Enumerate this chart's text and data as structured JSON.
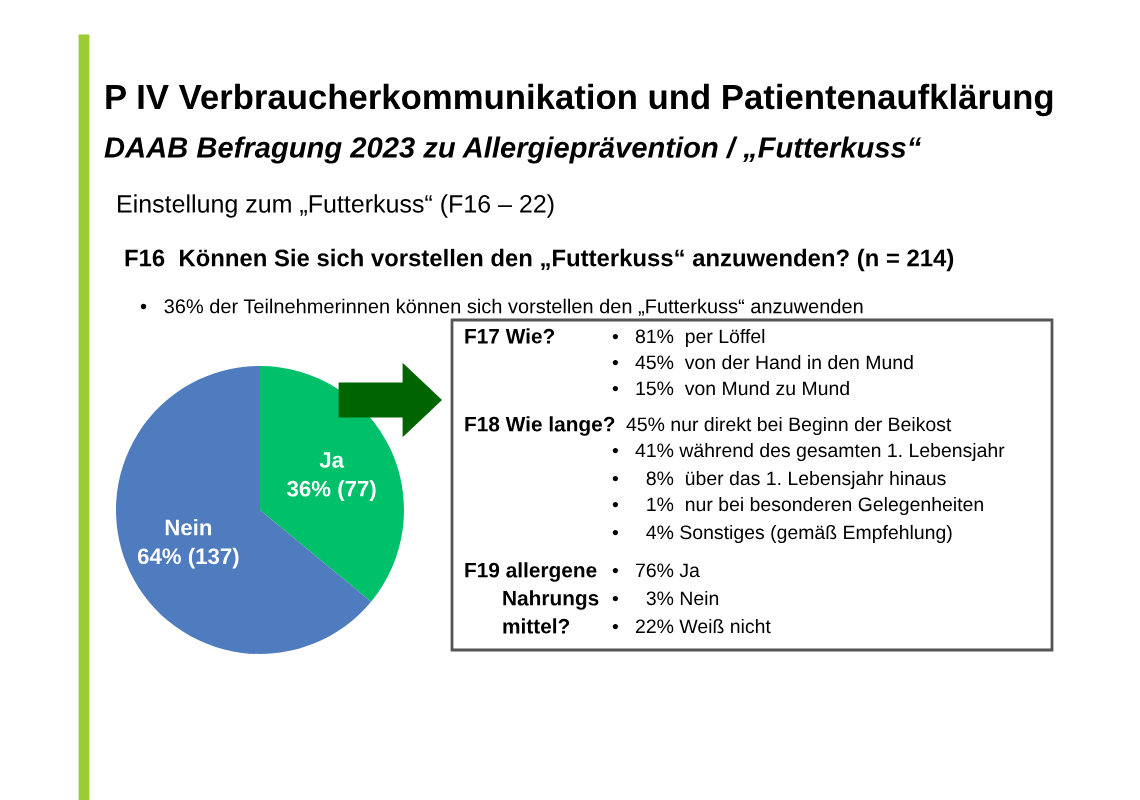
{
  "chart_data": {
    "type": "pie",
    "title": "P IV Verbraucherkommunikation und Patientenaufklärung",
    "subtitle": "DAAB Befragung 2023 zu Allergieprävention / „Futterkuss“",
    "categories": [
      "Ja",
      "Nein"
    ],
    "values": [
      77,
      137
    ],
    "colors": [
      "#00c06a",
      "#4f7bbf"
    ],
    "value_labels": [
      "36% (77)",
      "64% (137)"
    ],
    "annotations": [
      "Einstellung zum „Futterkuss“ (F16 – 22)",
      "F16  Können Sie sich vorstellen den „Futterkuss“ anzuwenden? (n = 214)",
      "•   36% der Teilnehmerinnen können sich vorstellen den „Futterkuss“ anzuwenden",
      "F17 Wie?",
      "•   81%  per Löffel",
      "•   45%  von der Hand in den Mund",
      "•   15%  von Mund zu Mund",
      "F18 Wie lange?",
      "45% nur direkt bei Beginn der Beikost",
      "•   41% während des gesamten 1. Lebensjahr",
      "•     8%  über das 1. Lebensjahr hinaus",
      "•     1%  nur bei besonderen Gelegenheiten",
      "•     4% Sonstiges (gemäß Empfehlung)",
      "F19 allergene",
      "Nahrungs",
      "mittel?",
      "•   76% Ja",
      "•     3% Nein",
      "•   22% Weiß nicht"
    ]
  }
}
